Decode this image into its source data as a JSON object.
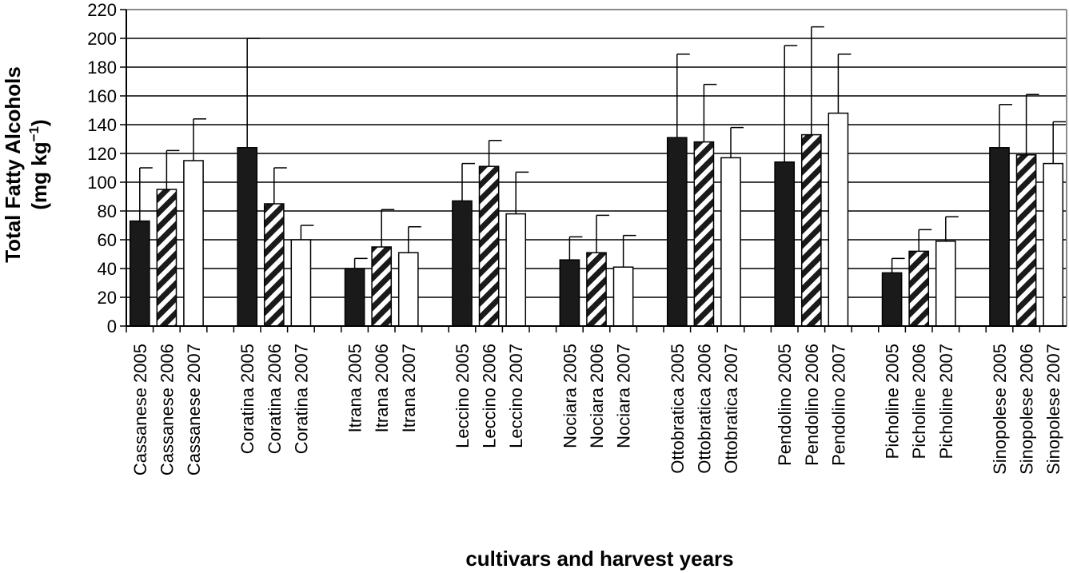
{
  "chart_data": {
    "type": "bar",
    "xlabel": "cultivars and harvest years",
    "ylabel_line1": "Total Fatty Alcohols",
    "ylabel_line2_base": "(mg kg",
    "ylabel_line2_sup": "−1",
    "ylabel_line2_end": ")",
    "ylim": [
      0,
      220
    ],
    "yticks": [
      "0",
      "20",
      "40",
      "60",
      "80",
      "100",
      "120",
      "140",
      "160",
      "180",
      "200",
      "220"
    ],
    "grid": "horizontal",
    "years": [
      "2005",
      "2006",
      "2007"
    ],
    "year_fills": {
      "2005": "black",
      "2006": "diagonal-stripes",
      "2007": "white"
    },
    "colors": {
      "bar_dark": "#1a1a1a",
      "grid": "#000000",
      "frame": "#8c8c8c"
    },
    "groups": [
      {
        "cultivar": "Cassanese",
        "labels": [
          "Cassanese 2005",
          "Cassanese 2006",
          "Cassanese 2007"
        ],
        "values": [
          73,
          95,
          115
        ],
        "errors": [
          37,
          27,
          29
        ]
      },
      {
        "cultivar": "Coratina",
        "labels": [
          "Coratina 2005",
          "Coratina 2006",
          "Coratina 2007"
        ],
        "values": [
          124,
          85,
          60
        ],
        "errors": [
          76,
          25,
          10
        ]
      },
      {
        "cultivar": "Itrana",
        "labels": [
          "Itrana 2005",
          "Itrana 2006",
          "Itrana 2007"
        ],
        "values": [
          40,
          55,
          51
        ],
        "errors": [
          7,
          26,
          18
        ]
      },
      {
        "cultivar": "Leccino",
        "labels": [
          "Leccino 2005",
          "Leccino 2006",
          "Leccino 2007"
        ],
        "values": [
          87,
          111,
          78
        ],
        "errors": [
          26,
          18,
          29
        ]
      },
      {
        "cultivar": "Nociara",
        "labels": [
          "Nociara 2005",
          "Nociara 2006",
          "Nociara 2007"
        ],
        "values": [
          46,
          51,
          41
        ],
        "errors": [
          16,
          26,
          22
        ]
      },
      {
        "cultivar": "Ottobratica",
        "labels": [
          "Ottobratica 2005",
          "Ottobratica 2006",
          "Ottobratica 2007"
        ],
        "values": [
          131,
          128,
          117
        ],
        "errors": [
          58,
          40,
          21
        ]
      },
      {
        "cultivar": "Pendolino",
        "labels": [
          "Pendolino 2005",
          "Pendolino 2006",
          "Pendolino 2007"
        ],
        "values": [
          114,
          133,
          148
        ],
        "errors": [
          81,
          75,
          41
        ]
      },
      {
        "cultivar": "Picholine",
        "labels": [
          "Picholine 2005",
          "Picholine 2006",
          "Picholine 2007"
        ],
        "values": [
          37,
          52,
          59
        ],
        "errors": [
          10,
          15,
          17
        ]
      },
      {
        "cultivar": "Sinopolese",
        "labels": [
          "Sinopolese 2005",
          "Sinopolese 2006",
          "Sinopolese 2007"
        ],
        "values": [
          124,
          119,
          113
        ],
        "errors": [
          30,
          42,
          29
        ]
      }
    ]
  }
}
